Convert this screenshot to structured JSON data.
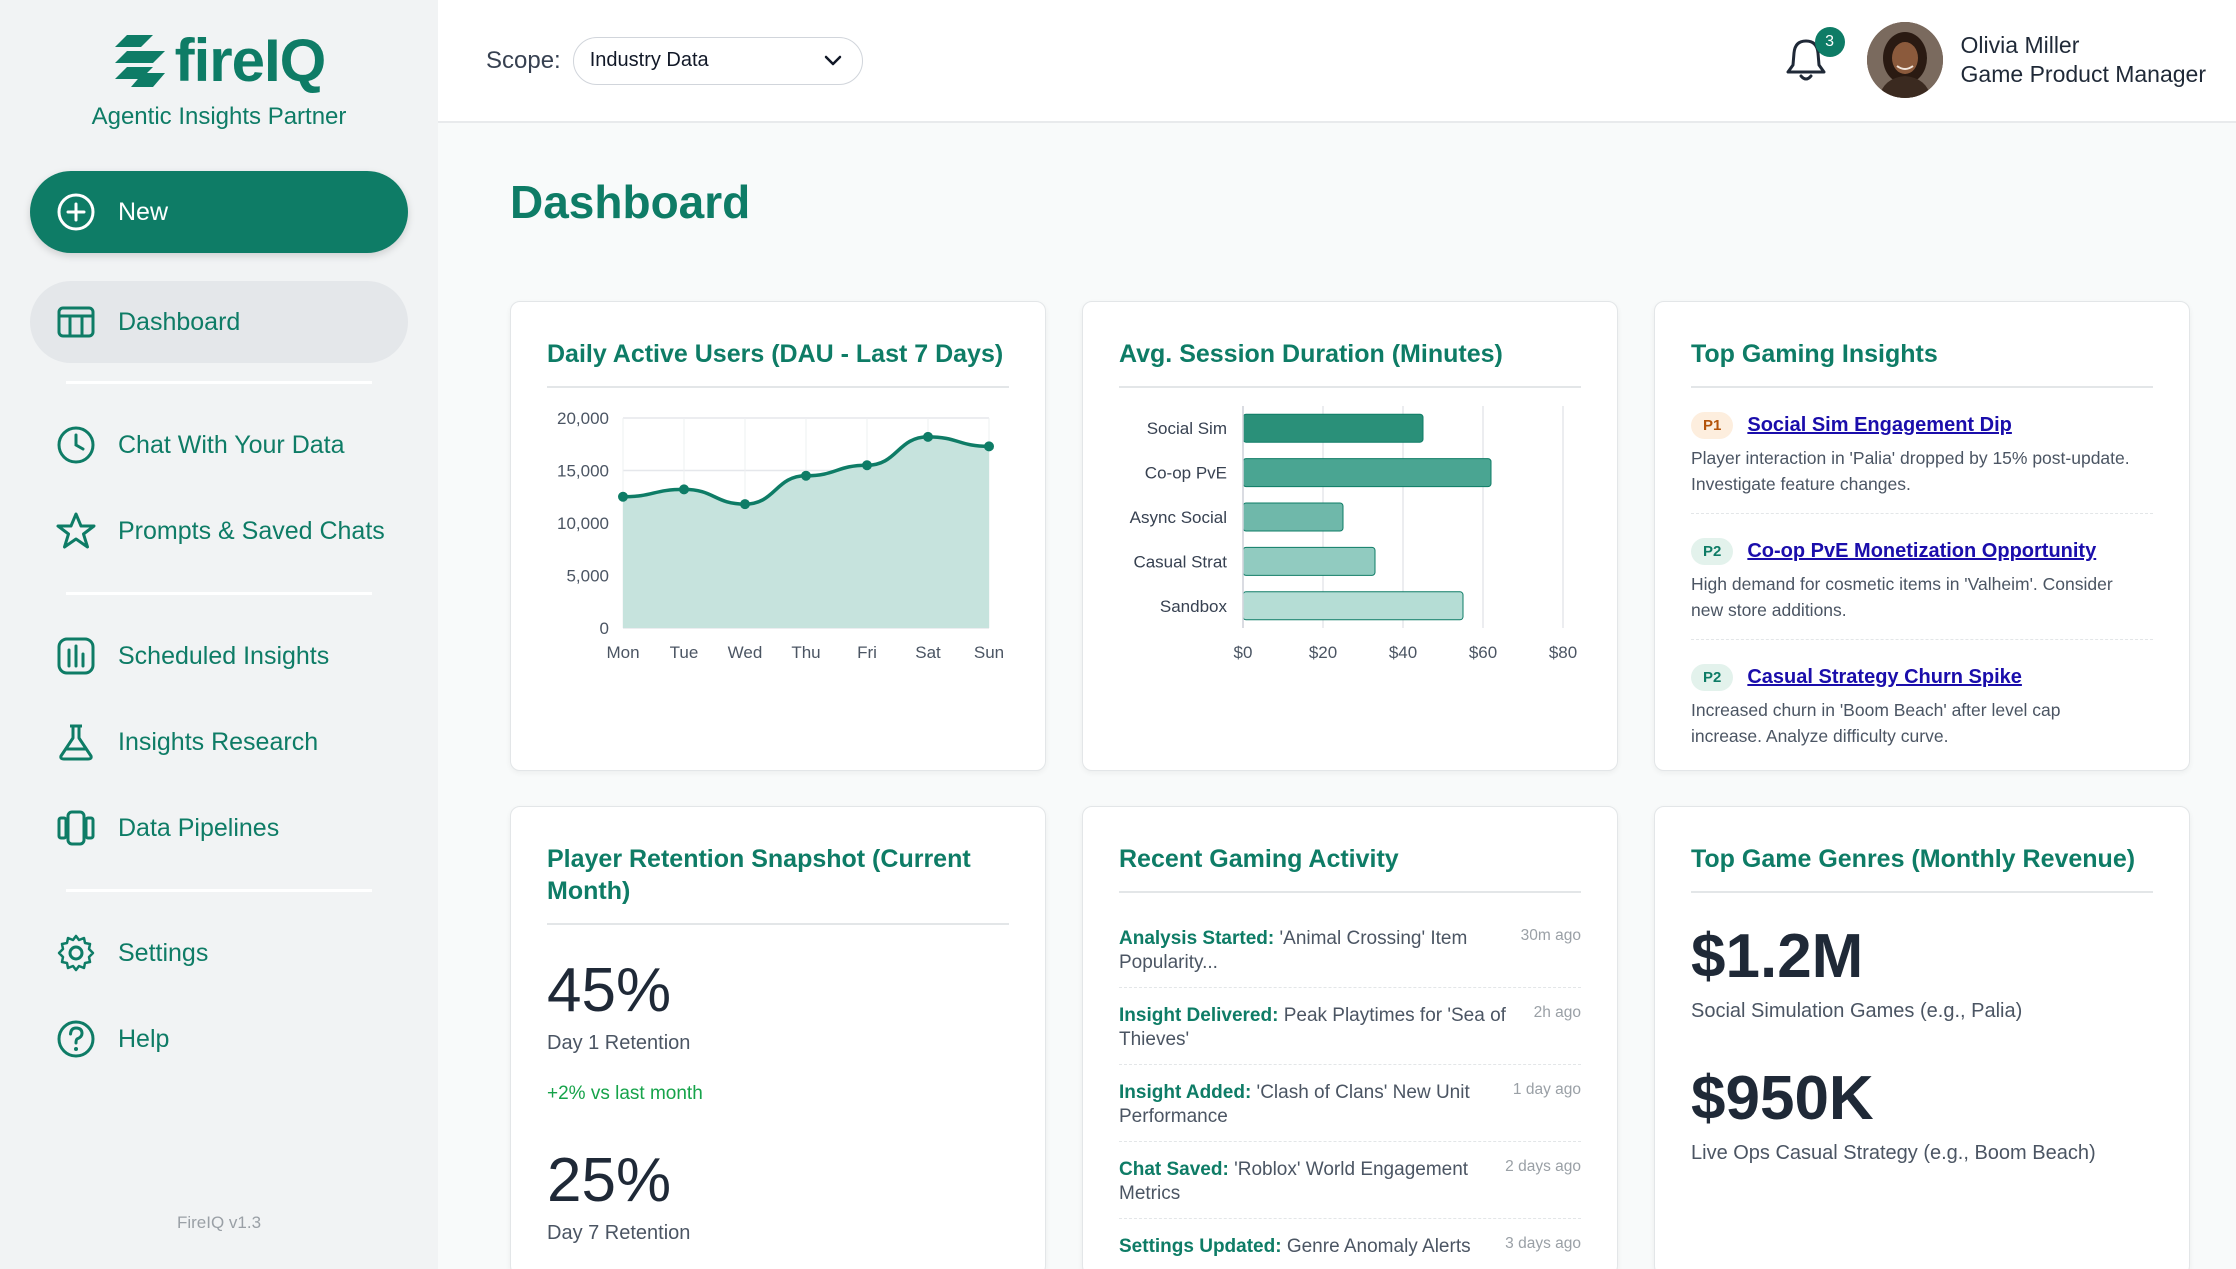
{
  "brand": {
    "name": "fireIQ",
    "tagline": "Agentic Insights Partner",
    "version": "FireIQ v1.3",
    "color": "#0e7c66"
  },
  "sidebar": {
    "new_label": "New",
    "items": [
      {
        "label": "Dashboard",
        "icon": "table-icon"
      },
      {
        "label": "Chat With Your Data",
        "icon": "clock-icon"
      },
      {
        "label": "Prompts & Saved Chats",
        "icon": "star-icon"
      },
      {
        "label": "Scheduled Insights",
        "icon": "bar-chart-icon"
      },
      {
        "label": "Insights Research",
        "icon": "flask-icon"
      },
      {
        "label": "Data Pipelines",
        "icon": "pipeline-icon"
      },
      {
        "label": "Settings",
        "icon": "gear-icon"
      },
      {
        "label": "Help",
        "icon": "help-icon"
      }
    ]
  },
  "topbar": {
    "scope_label": "Scope:",
    "scope_value": "Industry Data",
    "notification_count": "3",
    "user_name": "Olivia Miller",
    "user_role": "Game Product Manager"
  },
  "page": {
    "title": "Dashboard"
  },
  "cards": {
    "dau": {
      "title": "Daily Active Users (DAU - Last 7 Days)"
    },
    "session": {
      "title": "Avg. Session Duration (Minutes)"
    },
    "insights": {
      "title": "Top Gaming Insights",
      "items": [
        {
          "priority": "P1",
          "title": "Social Sim Engagement Dip",
          "desc_line1": "Player interaction in 'Palia' dropped by 15% post-update.",
          "desc_line2": "Investigate feature changes."
        },
        {
          "priority": "P2",
          "title": "Co-op PvE Monetization Opportunity",
          "desc_line1": "High demand for cosmetic items in 'Valheim'. Consider",
          "desc_line2": "new store additions."
        },
        {
          "priority": "P2",
          "title": "Casual Strategy Churn Spike",
          "desc_line1": "Increased churn in 'Boom Beach' after level cap",
          "desc_line2": "increase. Analyze difficulty curve."
        }
      ]
    },
    "retention": {
      "title_line1": "Player Retention Snapshot (Current",
      "title_line2": "Month)",
      "d1_value": "45%",
      "d1_label": "Day 1 Retention",
      "d1_delta": "+2% vs last month",
      "d7_value": "25%",
      "d7_label": "Day 7 Retention"
    },
    "activity": {
      "title": "Recent Gaming Activity",
      "items": [
        {
          "kind": "Analysis Started:",
          "text": " 'Animal Crossing' Item Popularity...",
          "time": "30m ago"
        },
        {
          "kind": "Insight Delivered:",
          "text": " Peak Playtimes for 'Sea of Thieves'",
          "time": "2h ago"
        },
        {
          "kind": "Insight Added:",
          "text": " 'Clash of Clans' New Unit Performance",
          "time": "1 day ago"
        },
        {
          "kind": "Chat Saved:",
          "text": " 'Roblox' World Engagement Metrics",
          "time": "2 days ago"
        },
        {
          "kind": "Settings Updated:",
          "text": " Genre Anomaly Alerts",
          "time": "3 days ago"
        }
      ]
    },
    "revenue": {
      "title": "Top Game Genres (Monthly Revenue)",
      "items": [
        {
          "value": "$1.2M",
          "label": "Social Simulation Games (e.g., Palia)"
        },
        {
          "value": "$950K",
          "label": "Live Ops Casual Strategy (e.g., Boom Beach)"
        }
      ]
    }
  },
  "chart_data": [
    {
      "type": "area",
      "title": "Daily Active Users (DAU - Last 7 Days)",
      "categories": [
        "Mon",
        "Tue",
        "Wed",
        "Thu",
        "Fri",
        "Sat",
        "Sun"
      ],
      "values": [
        12500,
        13200,
        11800,
        14500,
        15500,
        18200,
        17300
      ],
      "ylim": [
        0,
        20000
      ],
      "yticks": [
        "20,000",
        "15,000",
        "10,000",
        "5,000",
        "0"
      ],
      "ytick_values": [
        20000,
        15000,
        10000,
        5000,
        0
      ],
      "color": "#0e7c66",
      "grid": true
    },
    {
      "type": "bar",
      "orientation": "horizontal",
      "title": "Avg. Session Duration (Minutes)",
      "categories": [
        "Social Sim",
        "Co-op PvE",
        "Async Social",
        "Casual Strat",
        "Sandbox"
      ],
      "values": [
        45,
        62,
        25,
        33,
        55
      ],
      "xlim": [
        0,
        80
      ],
      "xticks": [
        "$0",
        "$20",
        "$40",
        "$60",
        "$80"
      ],
      "xtick_values": [
        0,
        20,
        40,
        60,
        80
      ],
      "colors": [
        "#2a9079",
        "#4aa592",
        "#6fb8aa",
        "#91cbc0",
        "#b5ddd5"
      ],
      "grid": true
    }
  ]
}
